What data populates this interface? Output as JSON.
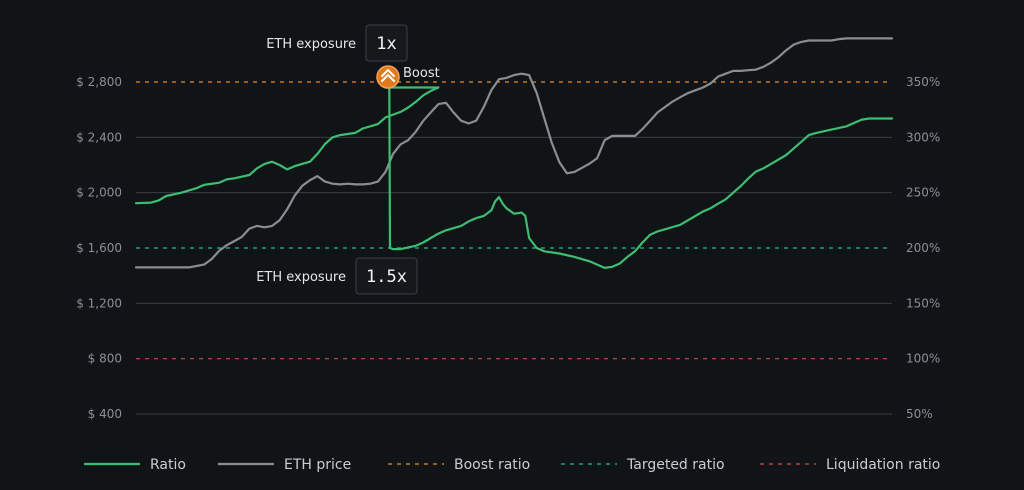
{
  "chart_data": {
    "type": "line",
    "y_left": {
      "ticks": [
        400,
        800,
        1200,
        1600,
        2000,
        2400,
        2800
      ],
      "tick_labels": [
        "$ 400",
        "$ 800",
        "$ 1,200",
        "$ 1,600",
        "$ 2,000",
        "$ 2,400",
        "$ 2,800"
      ]
    },
    "y_right": {
      "ticks": [
        50,
        100,
        150,
        200,
        250,
        300,
        350
      ],
      "tick_labels": [
        "50%",
        "100%",
        "150%",
        "200%",
        "250%",
        "300%",
        "350%"
      ]
    },
    "x_range": [
      0,
      100
    ],
    "series": [
      {
        "name": "Ratio",
        "color": "#3dbd72",
        "axis": "right",
        "points": [
          [
            0,
            240.5
          ],
          [
            2,
            241
          ],
          [
            3,
            243
          ],
          [
            4,
            247
          ],
          [
            6,
            250
          ],
          [
            8,
            254
          ],
          [
            9,
            257
          ],
          [
            11,
            259
          ],
          [
            12,
            262
          ],
          [
            13,
            263
          ],
          [
            15,
            266
          ],
          [
            16,
            272
          ],
          [
            17,
            276
          ],
          [
            18,
            278
          ],
          [
            19,
            275
          ],
          [
            20,
            271
          ],
          [
            21,
            274
          ],
          [
            23,
            278
          ],
          [
            24,
            285
          ],
          [
            25,
            294
          ],
          [
            26,
            300
          ],
          [
            27,
            302
          ],
          [
            29,
            304
          ],
          [
            30,
            308
          ],
          [
            32,
            312
          ],
          [
            33,
            318
          ],
          [
            35,
            323
          ],
          [
            36,
            327
          ],
          [
            37,
            332
          ],
          [
            38,
            338
          ],
          [
            39,
            342
          ],
          [
            40,
            345
          ],
          [
            33,
            345
          ],
          [
            33.4,
            345
          ],
          [
            33.5,
            345
          ],
          [
            33.6,
            200
          ],
          [
            34,
            199
          ],
          [
            35,
            199
          ],
          [
            37,
            202
          ],
          [
            38,
            205
          ],
          [
            39,
            209
          ],
          [
            40,
            213
          ],
          [
            41,
            216
          ],
          [
            43,
            220
          ],
          [
            44,
            224
          ],
          [
            45,
            227
          ],
          [
            46,
            229
          ],
          [
            47,
            234
          ],
          [
            47.5,
            242
          ],
          [
            48,
            246
          ],
          [
            48.5,
            240
          ],
          [
            49,
            236
          ],
          [
            50,
            231
          ],
          [
            51,
            232
          ],
          [
            51.5,
            229
          ],
          [
            52,
            209
          ],
          [
            53,
            200
          ],
          [
            54,
            197
          ],
          [
            56,
            195
          ],
          [
            58,
            192
          ],
          [
            60,
            188
          ],
          [
            61,
            185
          ],
          [
            62,
            182
          ],
          [
            63,
            183
          ],
          [
            64,
            186
          ],
          [
            65,
            192
          ],
          [
            66,
            197
          ],
          [
            67,
            205
          ],
          [
            68,
            212
          ],
          [
            69,
            215
          ],
          [
            71,
            219
          ],
          [
            72,
            221
          ],
          [
            73,
            225
          ],
          [
            74,
            229
          ],
          [
            75,
            233
          ],
          [
            76,
            236
          ],
          [
            77,
            240
          ],
          [
            78,
            244
          ],
          [
            79,
            250
          ],
          [
            80,
            256
          ],
          [
            81,
            263
          ],
          [
            82,
            269
          ],
          [
            83,
            272
          ],
          [
            84,
            276
          ],
          [
            85,
            280
          ],
          [
            86,
            284
          ],
          [
            87,
            290
          ],
          [
            88,
            296
          ],
          [
            89,
            302
          ],
          [
            90,
            304
          ],
          [
            92,
            307
          ],
          [
            94,
            310
          ],
          [
            95,
            313
          ],
          [
            96,
            316
          ],
          [
            97,
            317
          ],
          [
            100,
            317
          ]
        ]
      },
      {
        "name": "ETH price",
        "color": "#8a8d91",
        "axis": "left",
        "points": [
          [
            0,
            1460
          ],
          [
            3,
            1460
          ],
          [
            5,
            1460
          ],
          [
            7,
            1460
          ],
          [
            9,
            1480
          ],
          [
            10,
            1520
          ],
          [
            11,
            1580
          ],
          [
            12,
            1620
          ],
          [
            13,
            1650
          ],
          [
            14,
            1680
          ],
          [
            15,
            1740
          ],
          [
            16,
            1760
          ],
          [
            17,
            1750
          ],
          [
            18,
            1760
          ],
          [
            19,
            1800
          ],
          [
            20,
            1880
          ],
          [
            21,
            1980
          ],
          [
            22,
            2050
          ],
          [
            23,
            2090
          ],
          [
            24,
            2120
          ],
          [
            25,
            2080
          ],
          [
            26,
            2065
          ],
          [
            27,
            2060
          ],
          [
            28,
            2065
          ],
          [
            29,
            2060
          ],
          [
            30,
            2060
          ],
          [
            31,
            2065
          ],
          [
            32,
            2080
          ],
          [
            33,
            2150
          ],
          [
            34,
            2280
          ],
          [
            35,
            2350
          ],
          [
            36,
            2380
          ],
          [
            37,
            2440
          ],
          [
            38,
            2520
          ],
          [
            39,
            2580
          ],
          [
            40,
            2640
          ],
          [
            41,
            2650
          ],
          [
            42,
            2580
          ],
          [
            43,
            2520
          ],
          [
            44,
            2500
          ],
          [
            45,
            2520
          ],
          [
            46,
            2620
          ],
          [
            47,
            2740
          ],
          [
            48,
            2820
          ],
          [
            49,
            2830
          ],
          [
            50,
            2850
          ],
          [
            51,
            2860
          ],
          [
            52,
            2850
          ],
          [
            53,
            2720
          ],
          [
            54,
            2540
          ],
          [
            55,
            2360
          ],
          [
            56,
            2220
          ],
          [
            57,
            2140
          ],
          [
            58,
            2150
          ],
          [
            59,
            2180
          ],
          [
            60,
            2210
          ],
          [
            61,
            2250
          ],
          [
            62,
            2380
          ],
          [
            63,
            2410
          ],
          [
            64,
            2410
          ],
          [
            65,
            2410
          ],
          [
            66,
            2410
          ],
          [
            67,
            2460
          ],
          [
            68,
            2520
          ],
          [
            69,
            2580
          ],
          [
            70,
            2620
          ],
          [
            71,
            2660
          ],
          [
            72,
            2690
          ],
          [
            73,
            2720
          ],
          [
            74,
            2740
          ],
          [
            75,
            2760
          ],
          [
            76,
            2790
          ],
          [
            77,
            2840
          ],
          [
            78,
            2860
          ],
          [
            79,
            2880
          ],
          [
            80,
            2880
          ],
          [
            81,
            2885
          ],
          [
            82,
            2890
          ],
          [
            83,
            2910
          ],
          [
            84,
            2940
          ],
          [
            85,
            2980
          ],
          [
            86,
            3030
          ],
          [
            87,
            3070
          ],
          [
            88,
            3090
          ],
          [
            89,
            3100
          ],
          [
            90,
            3100
          ],
          [
            91,
            3100
          ],
          [
            92,
            3100
          ],
          [
            93,
            3110
          ],
          [
            94,
            3115
          ],
          [
            95,
            3115
          ],
          [
            100,
            3115
          ]
        ]
      }
    ],
    "reference_lines": [
      {
        "name": "Boost ratio",
        "value": 350,
        "axis": "right",
        "color": "#e8892b"
      },
      {
        "name": "Targeted ratio",
        "value": 200,
        "axis": "right",
        "color": "#2bb39a"
      },
      {
        "name": "Liquidation ratio",
        "value": 100,
        "axis": "right",
        "color": "#d8474e"
      }
    ],
    "annotations": [
      {
        "label": "ETH exposure",
        "value": "1x"
      },
      {
        "label": "Boost"
      },
      {
        "label": "ETH exposure",
        "value": "1.5x"
      }
    ],
    "legend": {
      "placement": "bottom",
      "items": [
        {
          "label": "Ratio",
          "style": "solid",
          "color": "#3dbd72"
        },
        {
          "label": "ETH price",
          "style": "solid",
          "color": "#8a8d91"
        },
        {
          "label": "Boost ratio",
          "style": "dashed",
          "color": "#e8892b"
        },
        {
          "label": "Targeted ratio",
          "style": "dashed",
          "color": "#2bb39a"
        },
        {
          "label": "Liquidation ratio",
          "style": "dashed",
          "color": "#d8474e"
        }
      ]
    },
    "grid": true
  }
}
